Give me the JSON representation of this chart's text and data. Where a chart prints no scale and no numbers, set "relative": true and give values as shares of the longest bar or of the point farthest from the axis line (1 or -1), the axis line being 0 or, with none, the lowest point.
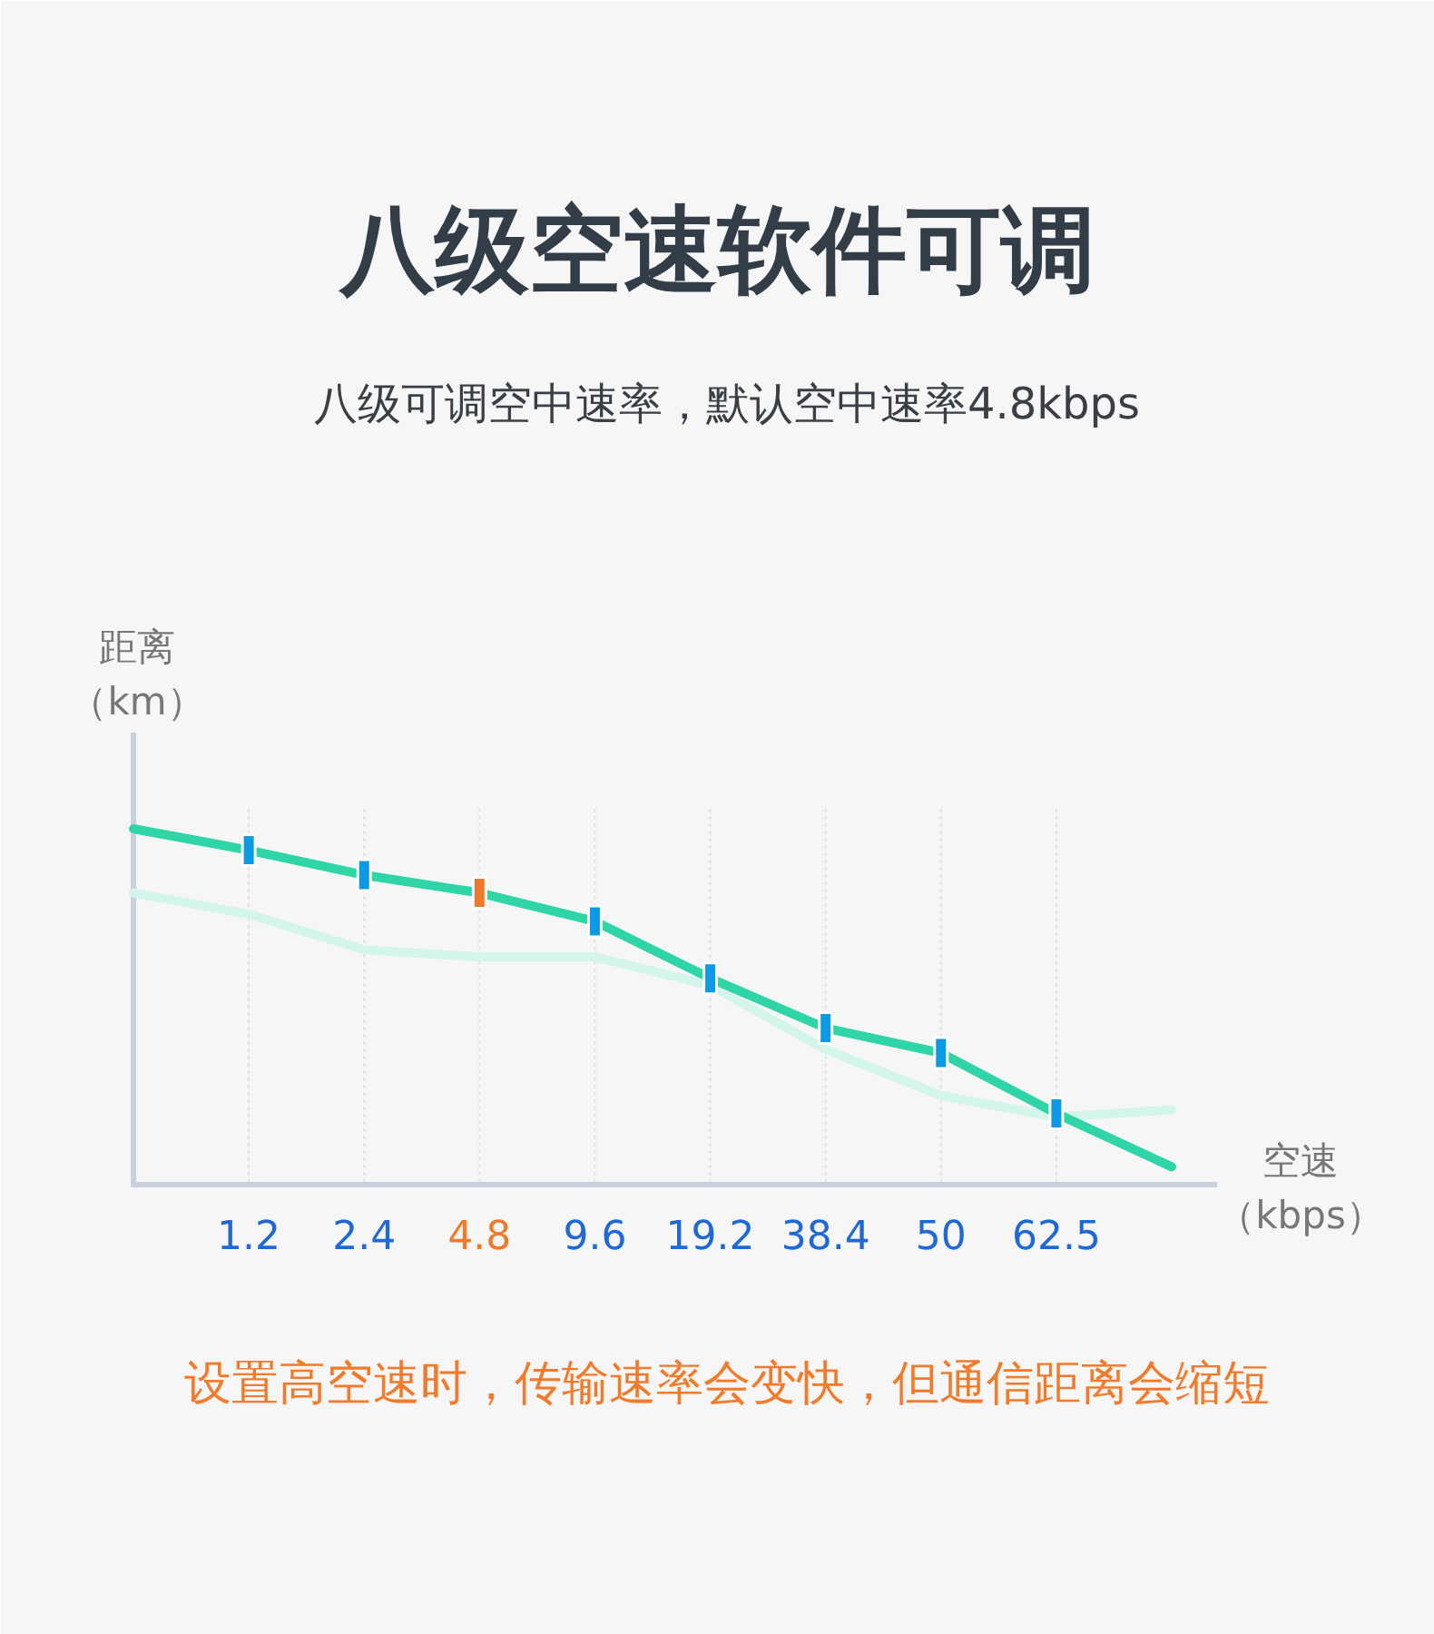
{
  "chart_data": {
    "type": "line",
    "title": "八级空速软件可调",
    "subtitle": "八级可调空中速率，默认空中速率4.8kbps",
    "xlabel": "空速（kbps）",
    "ylabel": "距离（km）",
    "categories": [
      null,
      "1.2",
      "2.4",
      "4.8",
      "9.6",
      "19.2",
      "38.4",
      "50",
      "62.5",
      null
    ],
    "relative": true,
    "grid": "x",
    "series": [
      {
        "color": "#d3f5eb",
        "values": [
          0.82,
          0.76,
          0.66,
          0.64,
          0.64,
          0.56,
          0.38,
          0.25,
          0.19,
          0.21
        ]
      },
      {
        "color": "#2fd5a6",
        "values": [
          1,
          0.94,
          0.87,
          0.82,
          0.74,
          0.58,
          0.44,
          0.37,
          0.2,
          0.05
        ]
      },
      {
        "type": "scatter",
        "marker": "square",
        "values": [
          null,
          0.94,
          0.87,
          0.82,
          0.74,
          0.58,
          0.44,
          0.37,
          0.2,
          null
        ],
        "colors": [
          null,
          "#0c9ae6",
          "#0c9ae6",
          "#f07a2c",
          "#0c9ae6",
          "#0c9ae6",
          "#0c9ae6",
          "#0c9ae6",
          "#0c9ae6",
          null
        ]
      }
    ],
    "annotations": [
      "设置高空速时，传输速率会变快，但通信距离会缩短"
    ]
  }
}
